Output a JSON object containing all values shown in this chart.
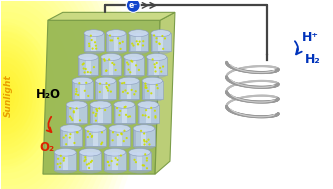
{
  "bg_color": "#ffffff",
  "sunlight_text_color": "#e8a000",
  "sunlight_text": "Sunlight",
  "h2o_text": "H₂O",
  "o2_text": "O₂",
  "o2_color": "#dd2200",
  "h2_text": "H₂",
  "hplus_text": "H⁺",
  "h2_hplus_color": "#0033bb",
  "electron_text": "e⁻",
  "electron_color": "#1144cc",
  "photoanode_base_color": "#a8c860",
  "photoanode_base_side": "#c0d878",
  "tube_body_color": "#b8cce8",
  "tube_highlight_color": "#deeaf8",
  "tube_shadow_color": "#8899bb",
  "tube_cap_color": "#c8d8f0",
  "dot_color": "#ccdd00",
  "wire_color": "#444444",
  "coil_outer_color": "#999999",
  "coil_inner_color": "#cccccc",
  "coil_edge_color": "#666666"
}
